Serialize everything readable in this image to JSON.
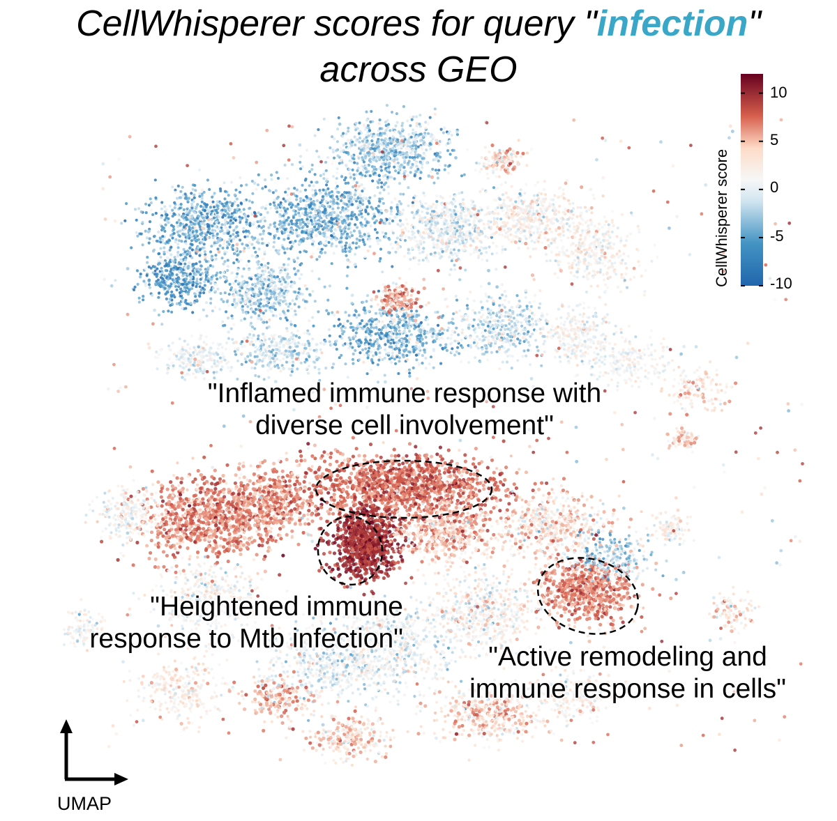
{
  "title": {
    "prefix": "CellWhisperer scores for query \"",
    "query": "infection",
    "suffix": "\"",
    "line2": "across GEO"
  },
  "colors": {
    "query_highlight": "#3aa7c8",
    "scale_low": "#2166ac",
    "scale_mid": "#f7f7f7",
    "scale_high": "#67001f"
  },
  "chart_data": {
    "type": "scatter",
    "title": "CellWhisperer scores for query \"infection\" across GEO",
    "xlabel": "UMAP",
    "ylabel": "UMAP",
    "color_variable": "CellWhisperer score",
    "colorbar": {
      "label": "CellWhisperer score",
      "range": [
        -10,
        12
      ],
      "ticks": [
        10,
        5,
        0,
        -5,
        -10
      ],
      "tick_labels": [
        "10",
        "5",
        "0",
        "-5",
        "-10"
      ],
      "colormap": "RdBu_r"
    },
    "annotations": [
      {
        "name": "inflamed-immune-response",
        "lines": [
          "\"Inflamed immune response with",
          "diverse cell involvement\""
        ]
      },
      {
        "name": "heightened-immune-response",
        "lines": [
          "\"Heightened immune",
          "response to Mtb infection\""
        ]
      },
      {
        "name": "active-remodeling",
        "lines": [
          "\"Active remodeling and",
          "immune response in cells\""
        ]
      }
    ],
    "axis_indicator": "UMAP"
  }
}
